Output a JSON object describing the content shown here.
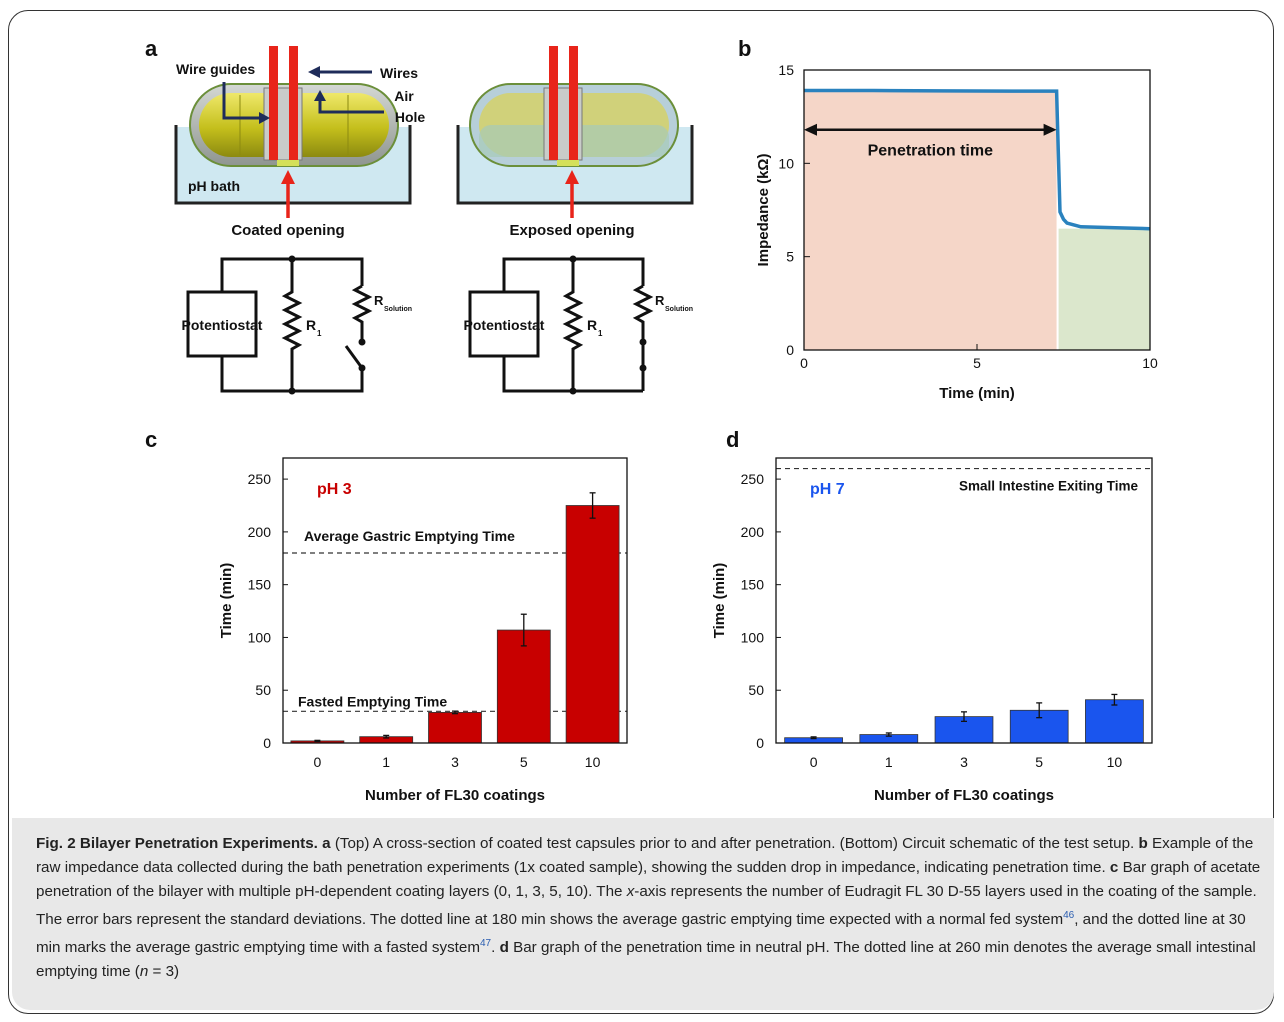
{
  "panel_a": {
    "letter": "a",
    "label_wire_guides": "Wire guides",
    "label_wires": "Wires",
    "label_air": "Air",
    "label_hole": "Hole",
    "label_ph_bath": "pH bath",
    "label_coated_opening": "Coated opening",
    "label_exposed_opening": "Exposed opening",
    "potentiostat_left": "Potentiostat",
    "potentiostat_right": "Potentiostat",
    "r1_left": "R",
    "r1_left_sub": "1",
    "r1_right": "R",
    "r1_right_sub": "1",
    "rsol_left": "R",
    "rsol_left_sub": "Solution",
    "rsol_right": "R",
    "rsol_right_sub": "Solution"
  },
  "panel_letters": {
    "b": "b",
    "c": "c",
    "d": "d"
  },
  "colors": {
    "ph3_bar": "#c80000",
    "ph7_bar": "#1a55ee",
    "trace": "#2a82be",
    "before_fill": "#f5d6c8",
    "after_fill": "#dbe7cc"
  },
  "chart_data": [
    {
      "type": "line",
      "panel": "b",
      "xlabel": "Time (min)",
      "ylabel": "Impedance (kΩ)",
      "xlim": [
        0,
        10
      ],
      "ylim": [
        0,
        15
      ],
      "xticks": [
        "0",
        "5",
        "10"
      ],
      "yticks": [
        "0",
        "5",
        "10",
        "15"
      ],
      "annotation": "Penetration time",
      "series": [
        {
          "x": [
            0,
            2,
            4,
            6,
            7.3,
            7.32,
            7.4,
            7.5,
            7.6,
            7.8,
            8,
            9,
            10
          ],
          "y": [
            13.9,
            13.9,
            13.88,
            13.87,
            13.87,
            12.5,
            7.4,
            7.0,
            6.8,
            6.7,
            6.6,
            6.55,
            6.5
          ]
        }
      ]
    },
    {
      "type": "bar",
      "panel": "c",
      "categories": [
        "0",
        "1",
        "3",
        "5",
        "10"
      ],
      "values": [
        2,
        6,
        29,
        107,
        225
      ],
      "errors": [
        0.5,
        1.2,
        1.2,
        15,
        12
      ],
      "xlabel": "Number of FL30 coatings",
      "ylabel": "Time (min)",
      "ylim": [
        0,
        270
      ],
      "yticks": [
        "0",
        "50",
        "100",
        "150",
        "200",
        "250"
      ],
      "series_label": "pH 3",
      "reference_lines": [
        {
          "value": 180,
          "label": "Average Gastric Emptying Time"
        },
        {
          "value": 30,
          "label": "Fasted Emptying Time"
        }
      ]
    },
    {
      "type": "bar",
      "panel": "d",
      "categories": [
        "0",
        "1",
        "3",
        "5",
        "10"
      ],
      "values": [
        5,
        8,
        25,
        31,
        41
      ],
      "errors": [
        0.8,
        1.5,
        4.5,
        7,
        5
      ],
      "xlabel": "Number of FL30 coatings",
      "ylabel": "Time (min)",
      "ylim": [
        0,
        270
      ],
      "yticks": [
        "0",
        "50",
        "100",
        "150",
        "200",
        "250"
      ],
      "series_label": "pH 7",
      "reference_lines": [
        {
          "value": 260,
          "label": "Small Intestine Exiting Time"
        }
      ]
    }
  ],
  "caption": {
    "fig_label": "Fig. 2 Bilayer Penetration Experiments.",
    "a_letter": "a",
    "a_text": "(Top) A cross-section of coated test capsules prior to and after penetration. (Bottom) Circuit schematic of the test setup.",
    "b_letter": "b",
    "b_text": "Example of the raw impedance data collected during the bath penetration experiments (1x coated sample), showing the sudden drop in impedance, indicating penetration time.",
    "c_letter": "c",
    "c_text_1": "Bar graph of acetate penetration of the bilayer with multiple pH-dependent coating layers (0, 1, 3, 5, 10). The",
    "c_xaxis": "x",
    "c_text_2": "-axis represents the number of Eudragit FL 30 D-55 layers used in the coating of the sample. The error bars represent the standard deviations. The dotted line at 180 min shows the average gastric emptying time expected with a normal fed system",
    "ref46": "46",
    "c_text_3": ", and the dotted line at 30 min marks the average gastric emptying time with a fasted system",
    "ref47": "47",
    "c_text_4": ".",
    "d_letter": "d",
    "d_text": "Bar graph of the penetration time in neutral pH. The dotted line at 260 min denotes the average small intestinal emptying time (",
    "n_var": "n",
    "n_text": " = 3)"
  }
}
